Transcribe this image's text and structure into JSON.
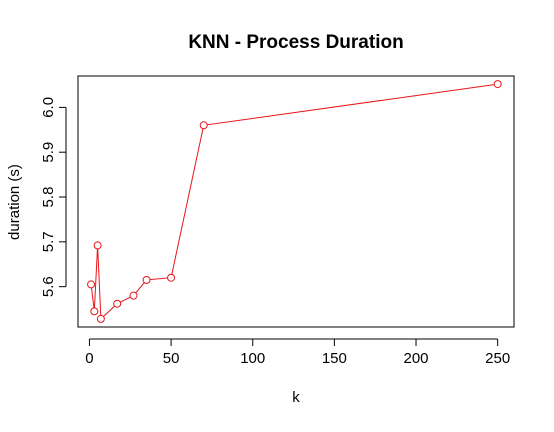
{
  "chart_data": {
    "type": "line",
    "title": "KNN - Process Duration",
    "xlabel": "k",
    "ylabel": "duration (s)",
    "xlim": [
      -7,
      260
    ],
    "ylim": [
      5.51,
      6.07
    ],
    "xticks": [
      0,
      50,
      100,
      150,
      200,
      250
    ],
    "yticks": [
      5.6,
      5.7,
      5.8,
      5.9,
      6.0
    ],
    "line_color": "#e8161a",
    "marker": "open-circle",
    "grid": false,
    "legend": "none",
    "series": [
      {
        "x": [
          1,
          3,
          5,
          7,
          17,
          27,
          35,
          50,
          70,
          250
        ],
        "y": [
          5.605,
          5.545,
          5.692,
          5.528,
          5.562,
          5.58,
          5.615,
          5.62,
          5.96,
          6.052
        ]
      }
    ]
  }
}
